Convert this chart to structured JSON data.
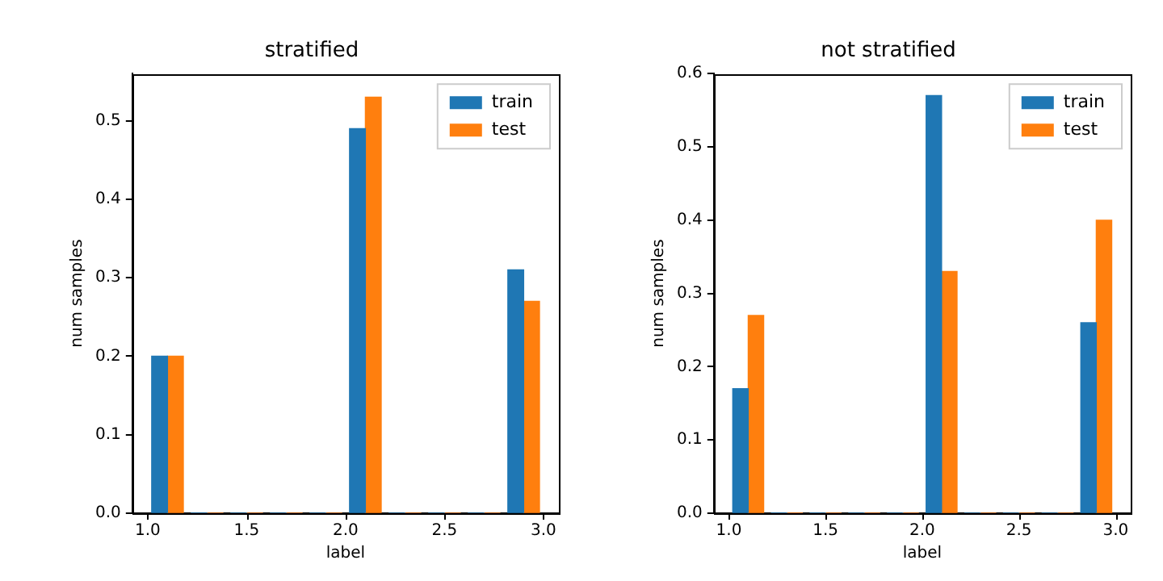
{
  "chart_data": [
    {
      "type": "histogram",
      "title": "stratified",
      "xlabel": "label",
      "ylabel": "num samples",
      "bins": [
        1.0,
        1.2,
        1.4,
        1.6,
        1.8,
        2.0,
        2.2,
        2.4,
        2.6,
        2.8,
        3.0
      ],
      "series": [
        {
          "name": "train",
          "color": "#1f77b4",
          "values": [
            0.2,
            0,
            0,
            0,
            0,
            0.49,
            0,
            0,
            0,
            0.31
          ]
        },
        {
          "name": "test",
          "color": "#ff7f0e",
          "values": [
            0.2,
            0,
            0,
            0,
            0,
            0.53,
            0,
            0,
            0,
            0.27
          ]
        }
      ],
      "xlim": [
        0.922,
        3.078
      ],
      "xticks": [
        {
          "value": 1,
          "label": "1.0"
        },
        {
          "value": 1.5,
          "label": "1.5"
        },
        {
          "value": 2,
          "label": "2.0"
        },
        {
          "value": 2.5,
          "label": "2.5"
        },
        {
          "value": 3,
          "label": "3.0"
        }
      ],
      "ylim": [
        0,
        0.56
      ],
      "yticks": [
        {
          "value": 0,
          "label": "0.0"
        },
        0.1,
        0.2,
        0.3,
        0.4,
        0.5
      ],
      "grid": false,
      "legend": "top right"
    },
    {
      "type": "histogram",
      "title": "not stratified",
      "xlabel": "label",
      "ylabel": "num samples",
      "bins": [
        1.0,
        1.2,
        1.4,
        1.6,
        1.8,
        2.0,
        2.2,
        2.4,
        2.6,
        2.8,
        3.0
      ],
      "series": [
        {
          "name": "train",
          "color": "#1f77b4",
          "values": [
            0.17,
            0,
            0,
            0,
            0,
            0.57,
            0,
            0,
            0,
            0.26
          ]
        },
        {
          "name": "test",
          "color": "#ff7f0e",
          "values": [
            0.27,
            0,
            0,
            0,
            0,
            0.33,
            0,
            0,
            0,
            0.4
          ]
        }
      ],
      "xlim": [
        0.922,
        3.078
      ],
      "xticks": [
        {
          "value": 1,
          "label": "1.0"
        },
        {
          "value": 1.5,
          "label": "1.5"
        },
        {
          "value": 2,
          "label": "2.0"
        },
        {
          "value": 2.5,
          "label": "2.5"
        },
        {
          "value": 3,
          "label": "3.0"
        }
      ],
      "ylim": [
        0,
        0.6
      ],
      "yticks": [
        {
          "value": 0,
          "label": "0.0"
        },
        0.1,
        0.2,
        0.3,
        0.4,
        0.5,
        0.6
      ],
      "grid": false,
      "legend": "top right"
    }
  ]
}
